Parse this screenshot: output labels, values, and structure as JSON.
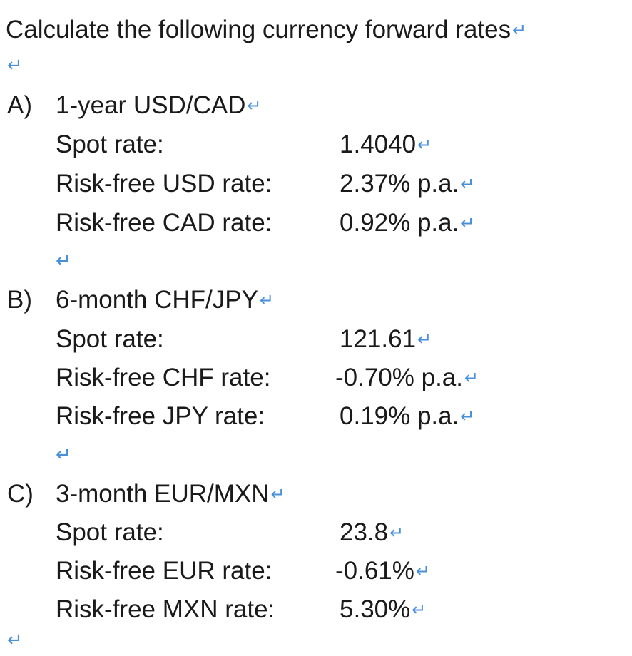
{
  "title": "Calculate the following currency forward rates",
  "paragraph_mark": "↵",
  "sections": [
    {
      "letter": "A)",
      "heading": "1-year USD/CAD",
      "rows": [
        {
          "label": "Spot rate:",
          "value": "1.4040"
        },
        {
          "label": "Risk-free USD rate:",
          "value": "2.37% p.a."
        },
        {
          "label": "Risk-free CAD rate:",
          "value": "0.92% p.a."
        }
      ]
    },
    {
      "letter": "B)",
      "heading": "6-month CHF/JPY",
      "rows": [
        {
          "label": "Spot rate:",
          "value": "121.61"
        },
        {
          "label": "Risk-free CHF rate:",
          "value": "-0.70% p.a."
        },
        {
          "label": "Risk-free JPY rate:",
          "value": "0.19% p.a."
        }
      ]
    },
    {
      "letter": "C)",
      "heading": "3-month EUR/MXN",
      "rows": [
        {
          "label": "Spot rate:",
          "value": "23.8"
        },
        {
          "label": "Risk-free EUR rate:",
          "value": "-0.61%"
        },
        {
          "label": "Risk-free MXN rate:",
          "value": "5.30%"
        }
      ]
    }
  ]
}
